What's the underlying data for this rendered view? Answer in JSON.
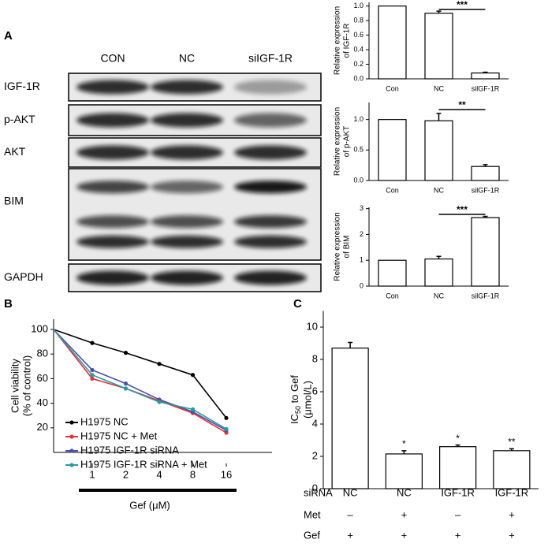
{
  "panel_labels": [
    "A",
    "B",
    "C"
  ],
  "blot": {
    "columns": [
      "CON",
      "NC",
      "siIGF-1R"
    ],
    "rows": [
      "IGF-1R",
      "p-AKT",
      "AKT",
      "BIM",
      "GAPDH"
    ]
  },
  "chart_data": [
    {
      "type": "bar",
      "ylabel": [
        "Relative expression",
        "of IGF-1R"
      ],
      "categories": [
        "Con",
        "NC",
        "silGF-1R"
      ],
      "values": [
        1.0,
        0.9,
        0.08
      ],
      "errors": [
        null,
        0.03,
        0.01
      ],
      "color": "#ffffff",
      "significance": "***",
      "ylim": [
        0,
        1.05
      ],
      "yticks": [
        {
          "value": 0,
          "label": "0.0"
        },
        0.2,
        0.4,
        0.6,
        0.8,
        {
          "value": 1,
          "label": "1.0"
        }
      ]
    },
    {
      "type": "bar",
      "ylabel": [
        "Relative expression",
        "of p-AKT"
      ],
      "categories": [
        "Con",
        "NC",
        "silGF-1R"
      ],
      "values": [
        1.0,
        0.98,
        0.23
      ],
      "errors": [
        null,
        0.12,
        0.03
      ],
      "color": "#ffffff",
      "significance": "**",
      "ylim": [
        0,
        1.28
      ],
      "yticks": [
        {
          "value": 0,
          "label": "0.0"
        },
        0.5,
        {
          "value": 1,
          "label": "1.0"
        }
      ]
    },
    {
      "type": "bar",
      "ylabel": [
        "Relative expression",
        "of BIM"
      ],
      "categories": [
        "Con",
        "NC",
        "silGF-1R"
      ],
      "values": [
        1.0,
        1.05,
        2.65
      ],
      "errors": [
        null,
        0.1,
        0.05
      ],
      "color": "#ffffff",
      "significance": "***",
      "ylim": [
        0,
        3.05
      ],
      "yticks": [
        0,
        1,
        2,
        3
      ]
    },
    {
      "type": "line",
      "ylabel": [
        "Cell viability",
        "(% of control)"
      ],
      "xlabel": "Gef (μM)",
      "categories": [
        null,
        "1",
        "2",
        "4",
        "8",
        "16"
      ],
      "ylim": [
        0,
        100
      ],
      "yticks": [
        20,
        40,
        60,
        80,
        100
      ],
      "series": [
        {
          "name": "H1975 NC",
          "color": "#000000",
          "values": [
            100,
            89,
            81,
            72,
            63,
            28
          ]
        },
        {
          "name": "H1975 NC + Met",
          "color": "#e8303a",
          "values": [
            100,
            60,
            52,
            42,
            32,
            16
          ]
        },
        {
          "name": "H1975 IGF-1R siRNA",
          "color": "#4a4fa8",
          "values": [
            100,
            67,
            56,
            43,
            33,
            18
          ]
        },
        {
          "name": "H1975 IGF-1R siRNA + Met",
          "color": "#2a9a9a",
          "values": [
            100,
            63,
            52,
            41,
            35,
            19
          ]
        }
      ]
    },
    {
      "type": "bar",
      "ylabel": {
        "main": "IC",
        "sub": "50",
        "rest": " to Gef",
        "unit": "(μmol/L)"
      },
      "row_label": "siRNA",
      "categories": [
        "NC",
        "NC",
        "IGF-1R",
        "IGF-1R"
      ],
      "values": [
        8.7,
        2.15,
        2.6,
        2.35
      ],
      "errors": [
        0.35,
        0.2,
        0.1,
        0.12
      ],
      "color": "#ffffff",
      "annotations": [
        null,
        "*",
        "*",
        "**"
      ],
      "ylim": [
        0,
        11
      ],
      "yticks": [
        0,
        2,
        4,
        6,
        8,
        10
      ],
      "conditions": [
        {
          "label": "Met",
          "cells": [
            "–",
            "+",
            "–",
            "+"
          ]
        },
        {
          "label": "Gef",
          "cells": [
            "+",
            "+",
            "+",
            "+"
          ]
        }
      ]
    }
  ]
}
